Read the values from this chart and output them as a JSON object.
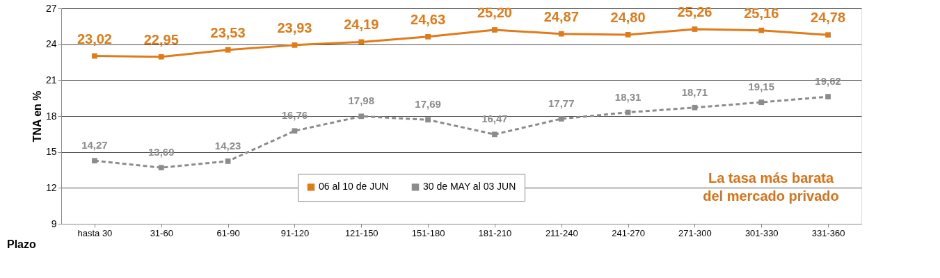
{
  "chart_data": {
    "type": "line",
    "xlabel": "Plazo",
    "ylabel": "TNA en %",
    "categories": [
      "hasta 30",
      "31-60",
      "61-90",
      "91-120",
      "121-150",
      "151-180",
      "181-210",
      "211-240",
      "241-270",
      "271-300",
      "301-330",
      "331-360"
    ],
    "series": [
      {
        "name": "06 al 10 de JUN",
        "color": "#e07b1a",
        "line_style": "solid",
        "values": [
          23.02,
          22.95,
          23.53,
          23.93,
          24.19,
          24.63,
          25.2,
          24.87,
          24.8,
          25.26,
          25.16,
          24.78
        ],
        "value_labels": [
          "23,02",
          "22,95",
          "23,53",
          "23,93",
          "24,19",
          "24,63",
          "25,20",
          "24,87",
          "24,80",
          "25,26",
          "25,16",
          "24,78"
        ]
      },
      {
        "name": "30 de MAY al 03 JUN",
        "color": "#8c8c8c",
        "line_style": "dashed",
        "values": [
          14.27,
          13.69,
          14.23,
          16.76,
          17.98,
          17.69,
          16.47,
          17.77,
          18.31,
          18.71,
          19.15,
          19.62
        ],
        "value_labels": [
          "14,27",
          "13,69",
          "14,23",
          "16,76",
          "17,98",
          "17,69",
          "16,47",
          "17,77",
          "18,31",
          "18,71",
          "19,15",
          "19,62"
        ]
      }
    ],
    "ylim": [
      9,
      27
    ],
    "yticks": [
      9,
      12,
      15,
      18,
      21,
      24,
      27
    ],
    "grid": "y",
    "legend": "bottom",
    "marker": "square",
    "annotations": [
      "La tasa más barata del mercado privado"
    ]
  }
}
